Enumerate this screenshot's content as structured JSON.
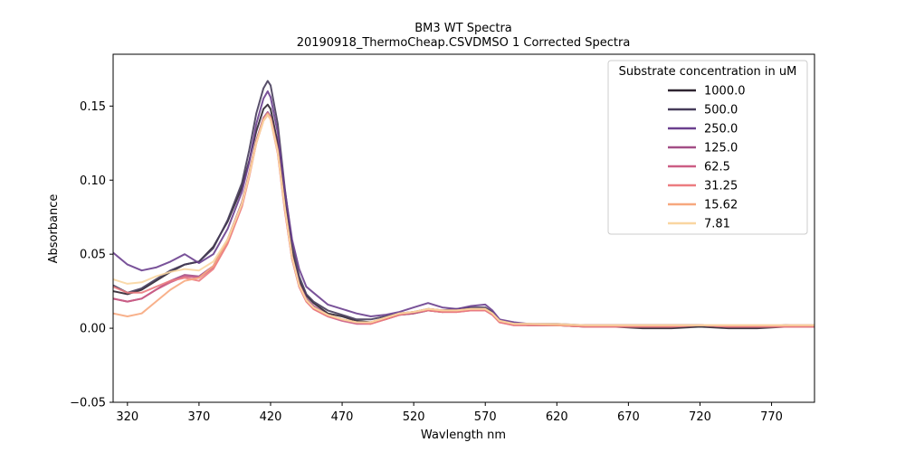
{
  "chart_data": {
    "type": "line",
    "title": "BM3 WT Spectra",
    "subtitle": "20190918_ThermoCheap.CSVDMSO 1 Corrected Spectra",
    "xlabel": "Wavlength nm",
    "ylabel": "Absorbance",
    "xlim": [
      310,
      800
    ],
    "ylim": [
      -0.05,
      0.185
    ],
    "xticks": [
      320,
      370,
      420,
      470,
      520,
      570,
      620,
      670,
      720,
      770
    ],
    "yticks": [
      -0.05,
      0.0,
      0.05,
      0.1,
      0.15
    ],
    "ytick_labels": [
      "−0.05",
      "0.00",
      "0.05",
      "0.10",
      "0.15"
    ],
    "grid": false,
    "legend": {
      "title": "Substrate concentration in uM",
      "placement": "top-right"
    },
    "x": [
      310,
      320,
      330,
      340,
      350,
      360,
      370,
      380,
      390,
      400,
      405,
      410,
      415,
      418,
      420,
      425,
      430,
      435,
      440,
      445,
      450,
      460,
      470,
      480,
      490,
      500,
      510,
      520,
      530,
      540,
      550,
      560,
      570,
      575,
      580,
      590,
      600,
      620,
      640,
      660,
      680,
      700,
      720,
      740,
      760,
      780,
      800
    ],
    "series": [
      {
        "name": "1000.0",
        "color": "#2e2430",
        "values": [
          0.025,
          0.023,
          0.026,
          0.032,
          0.038,
          0.043,
          0.045,
          0.055,
          0.072,
          0.095,
          0.113,
          0.133,
          0.148,
          0.151,
          0.148,
          0.125,
          0.085,
          0.052,
          0.032,
          0.022,
          0.017,
          0.01,
          0.008,
          0.005,
          0.004,
          0.006,
          0.009,
          0.01,
          0.012,
          0.011,
          0.012,
          0.013,
          0.013,
          0.01,
          0.005,
          0.003,
          0.002,
          0.002,
          0.001,
          0.001,
          0.0,
          0.0,
          0.001,
          0.0,
          0.0,
          0.001,
          0.001
        ]
      },
      {
        "name": "500.0",
        "color": "#463c5a",
        "values": [
          0.029,
          0.024,
          0.027,
          0.033,
          0.039,
          0.043,
          0.045,
          0.054,
          0.073,
          0.098,
          0.12,
          0.145,
          0.162,
          0.167,
          0.164,
          0.138,
          0.094,
          0.057,
          0.035,
          0.023,
          0.018,
          0.012,
          0.009,
          0.006,
          0.006,
          0.008,
          0.01,
          0.011,
          0.013,
          0.012,
          0.013,
          0.014,
          0.014,
          0.011,
          0.005,
          0.003,
          0.003,
          0.002,
          0.002,
          0.002,
          0.002,
          0.002,
          0.002,
          0.001,
          0.001,
          0.002,
          0.001
        ]
      },
      {
        "name": "250.0",
        "color": "#6a3f8e",
        "values": [
          0.051,
          0.043,
          0.039,
          0.041,
          0.045,
          0.05,
          0.044,
          0.05,
          0.067,
          0.092,
          0.112,
          0.138,
          0.155,
          0.16,
          0.156,
          0.132,
          0.093,
          0.06,
          0.04,
          0.028,
          0.024,
          0.016,
          0.013,
          0.01,
          0.008,
          0.009,
          0.011,
          0.014,
          0.017,
          0.014,
          0.013,
          0.015,
          0.016,
          0.012,
          0.006,
          0.004,
          0.003,
          0.003,
          0.002,
          0.002,
          0.002,
          0.002,
          0.002,
          0.001,
          0.001,
          0.002,
          0.001
        ]
      },
      {
        "name": "125.0",
        "color": "#a34e86",
        "values": [
          0.02,
          0.018,
          0.02,
          0.026,
          0.032,
          0.036,
          0.035,
          0.042,
          0.06,
          0.085,
          0.105,
          0.127,
          0.142,
          0.146,
          0.143,
          0.121,
          0.082,
          0.049,
          0.03,
          0.02,
          0.015,
          0.009,
          0.006,
          0.004,
          0.004,
          0.007,
          0.01,
          0.011,
          0.013,
          0.012,
          0.012,
          0.013,
          0.013,
          0.01,
          0.005,
          0.003,
          0.002,
          0.002,
          0.002,
          0.002,
          0.002,
          0.002,
          0.002,
          0.001,
          0.001,
          0.002,
          0.002
        ]
      },
      {
        "name": "62.5",
        "color": "#cc5d84",
        "values": [
          0.02,
          0.018,
          0.02,
          0.026,
          0.031,
          0.035,
          0.034,
          0.041,
          0.058,
          0.083,
          0.103,
          0.125,
          0.141,
          0.145,
          0.142,
          0.119,
          0.08,
          0.047,
          0.028,
          0.018,
          0.013,
          0.008,
          0.005,
          0.003,
          0.003,
          0.006,
          0.009,
          0.01,
          0.012,
          0.011,
          0.011,
          0.012,
          0.012,
          0.009,
          0.004,
          0.002,
          0.002,
          0.002,
          0.001,
          0.001,
          0.001,
          0.001,
          0.002,
          0.001,
          0.001,
          0.001,
          0.001
        ]
      },
      {
        "name": "31.25",
        "color": "#ec7c80",
        "values": [
          0.028,
          0.024,
          0.024,
          0.028,
          0.032,
          0.034,
          0.032,
          0.04,
          0.057,
          0.082,
          0.102,
          0.125,
          0.14,
          0.144,
          0.141,
          0.118,
          0.079,
          0.047,
          0.028,
          0.018,
          0.013,
          0.008,
          0.006,
          0.004,
          0.003,
          0.006,
          0.009,
          0.011,
          0.012,
          0.011,
          0.011,
          0.012,
          0.012,
          0.009,
          0.004,
          0.002,
          0.002,
          0.002,
          0.001,
          0.001,
          0.001,
          0.001,
          0.002,
          0.001,
          0.001,
          0.001,
          0.001
        ]
      },
      {
        "name": "15.62",
        "color": "#f7a87e",
        "values": [
          0.01,
          0.008,
          0.01,
          0.018,
          0.026,
          0.032,
          0.034,
          0.042,
          0.059,
          0.084,
          0.104,
          0.126,
          0.141,
          0.145,
          0.142,
          0.12,
          0.081,
          0.048,
          0.029,
          0.019,
          0.014,
          0.009,
          0.006,
          0.004,
          0.004,
          0.007,
          0.01,
          0.011,
          0.013,
          0.012,
          0.012,
          0.013,
          0.013,
          0.01,
          0.005,
          0.003,
          0.003,
          0.002,
          0.002,
          0.002,
          0.002,
          0.002,
          0.002,
          0.002,
          0.002,
          0.002,
          0.002
        ]
      },
      {
        "name": "7.81",
        "color": "#f9d6a1",
        "values": [
          0.033,
          0.03,
          0.031,
          0.035,
          0.038,
          0.04,
          0.039,
          0.045,
          0.06,
          0.084,
          0.103,
          0.125,
          0.14,
          0.144,
          0.141,
          0.119,
          0.081,
          0.048,
          0.029,
          0.019,
          0.014,
          0.009,
          0.006,
          0.004,
          0.004,
          0.007,
          0.01,
          0.011,
          0.013,
          0.012,
          0.012,
          0.013,
          0.013,
          0.01,
          0.005,
          0.003,
          0.003,
          0.003,
          0.002,
          0.002,
          0.002,
          0.002,
          0.002,
          0.002,
          0.002,
          0.002,
          0.002
        ]
      }
    ]
  }
}
